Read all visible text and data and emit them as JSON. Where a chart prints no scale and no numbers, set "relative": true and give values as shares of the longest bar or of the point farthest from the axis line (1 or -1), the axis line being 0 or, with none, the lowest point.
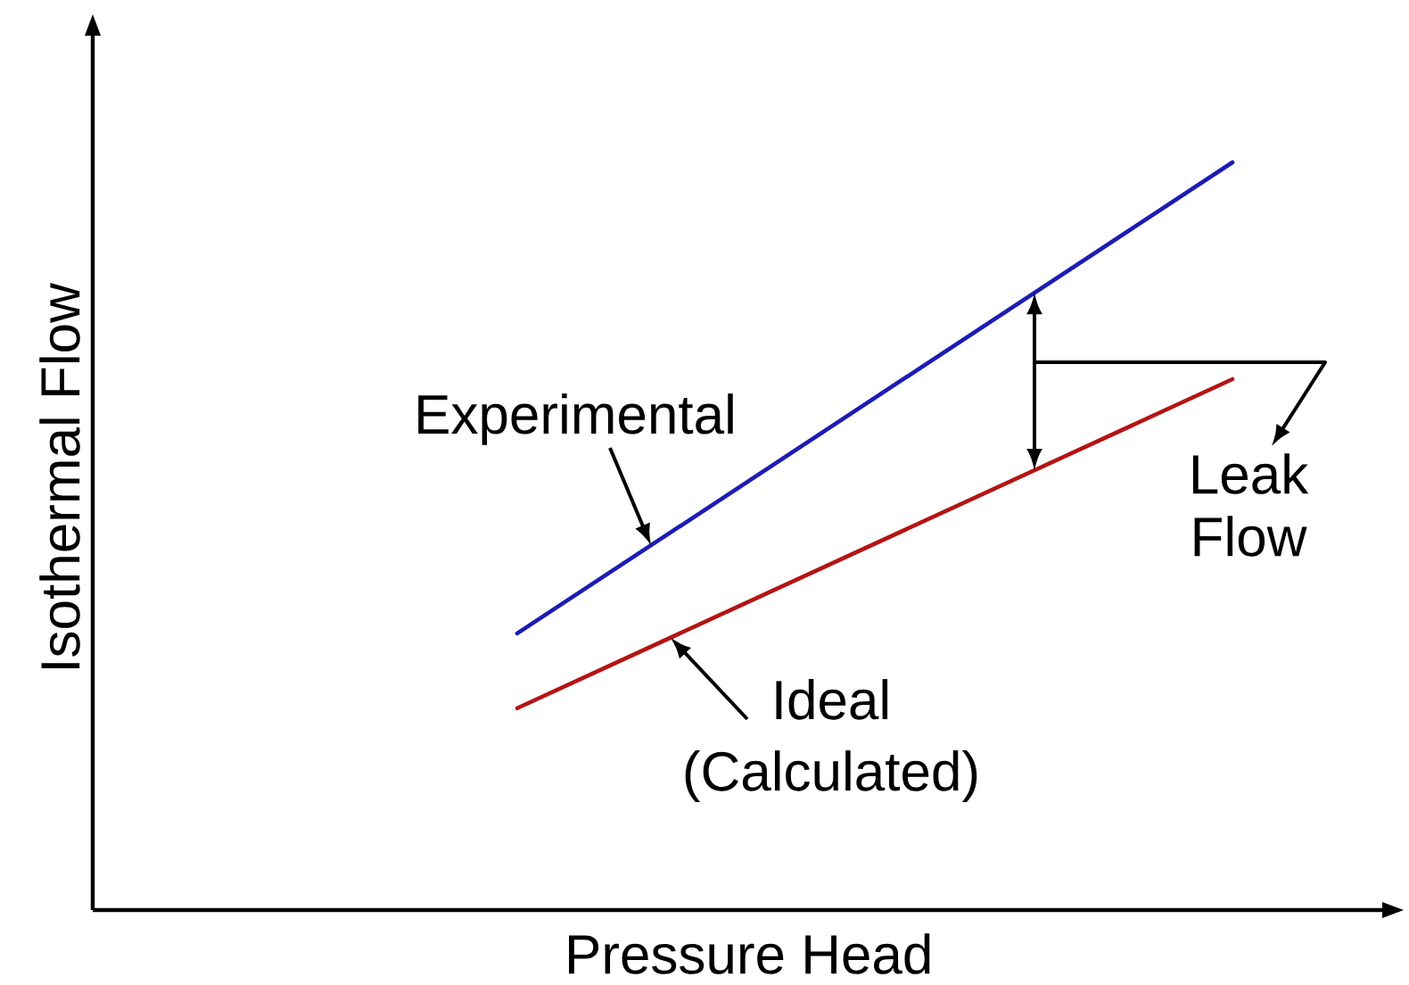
{
  "chart_data": {
    "type": "line",
    "relative": true,
    "xlabel": "Pressure Head",
    "ylabel": "Isothermal Flow",
    "categories": [
      null,
      null
    ],
    "series": [
      {
        "name": "Experimental",
        "color": "#1c1cb4",
        "values": [
          0.37,
          1
        ]
      },
      {
        "name": "Ideal (Calculated)",
        "color": "#b41414",
        "values": [
          0.27,
          0.71
        ]
      }
    ],
    "annotations": [
      "Leak Flow"
    ]
  }
}
